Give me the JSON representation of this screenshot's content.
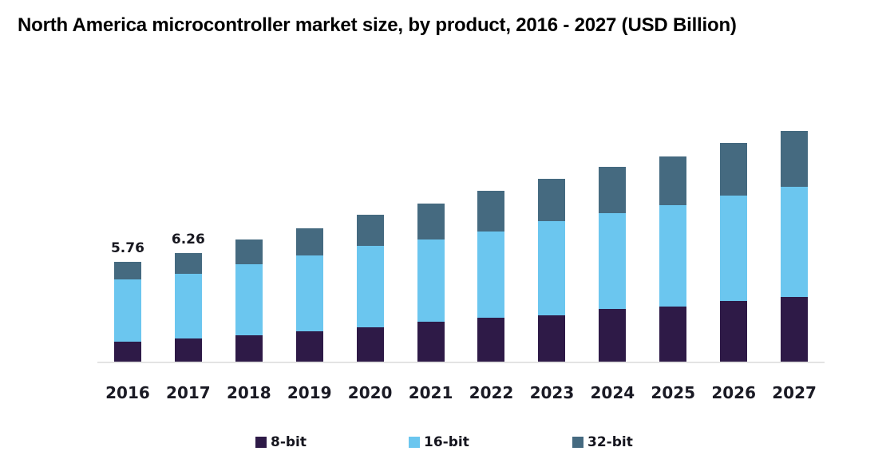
{
  "title": "North America microcontroller market size, by product, 2016 - 2027 (USD Billion)",
  "chart_data": {
    "type": "bar",
    "stacked": true,
    "title": "North America microcontroller market size, by product, 2016 - 2027 (USD Billion)",
    "categories": [
      "2016",
      "2017",
      "2018",
      "2019",
      "2020",
      "2021",
      "2022",
      "2023",
      "2024",
      "2025",
      "2026",
      "2027"
    ],
    "series": [
      {
        "name": "8-bit",
        "color": "#2E1A47",
        "values": [
          1.15,
          1.32,
          1.5,
          1.73,
          2.0,
          2.28,
          2.54,
          2.67,
          3.02,
          3.16,
          3.48,
          3.71
        ]
      },
      {
        "name": "16-bit",
        "color": "#6BC6EF",
        "values": [
          3.6,
          3.75,
          4.1,
          4.4,
          4.65,
          4.75,
          4.95,
          5.41,
          5.52,
          5.87,
          6.08,
          6.35
        ]
      },
      {
        "name": "32-bit",
        "color": "#456A80",
        "values": [
          1.01,
          1.19,
          1.42,
          1.58,
          1.81,
          2.07,
          2.35,
          2.45,
          2.67,
          2.79,
          3.07,
          3.26
        ]
      }
    ],
    "data_labels": [
      "5.76",
      "6.26",
      "",
      "",
      "",
      "",
      "",
      "",
      "",
      "",
      "",
      ""
    ],
    "xlabel": "",
    "ylabel": "",
    "ylim": [
      0,
      14.4
    ],
    "grid": false,
    "y_axis_visible": false,
    "legend_position": "bottom",
    "axis_line_color": "#E3E3E3"
  }
}
